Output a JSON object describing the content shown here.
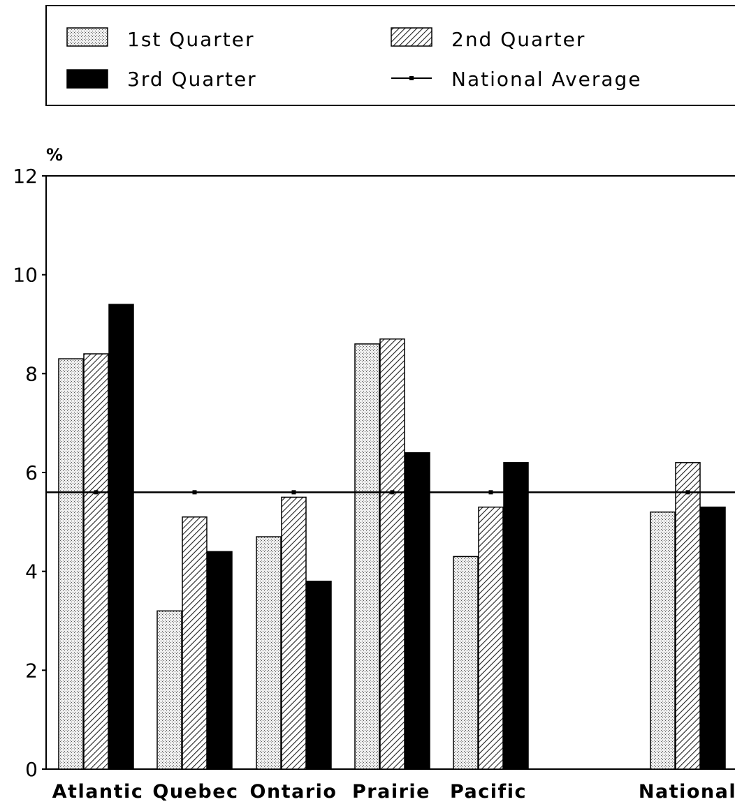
{
  "chart_data": {
    "type": "bar",
    "categories": [
      "Atlantic",
      "Quebec",
      "Ontario",
      "Prairie",
      "Pacific",
      "National"
    ],
    "series": [
      {
        "name": "1st Quarter",
        "values": [
          8.3,
          3.2,
          4.7,
          8.6,
          4.3,
          5.2
        ]
      },
      {
        "name": "2nd Quarter",
        "values": [
          8.4,
          5.1,
          5.5,
          8.7,
          5.3,
          6.2
        ]
      },
      {
        "name": "3rd Quarter",
        "values": [
          9.4,
          4.4,
          3.8,
          6.4,
          6.2,
          5.3
        ]
      }
    ],
    "reference_line": {
      "name": "National Average",
      "value": 5.6
    },
    "ylabel": "%",
    "ylim": [
      0,
      12
    ],
    "yticks": [
      0,
      2,
      4,
      6,
      8,
      10,
      12
    ],
    "legend_position": "top",
    "grid": false,
    "colors": {
      "q1_fill": "#e6e6e6",
      "q2_fill": "#bdbdbd",
      "q3_fill": "#000000",
      "axis": "#000000"
    }
  }
}
